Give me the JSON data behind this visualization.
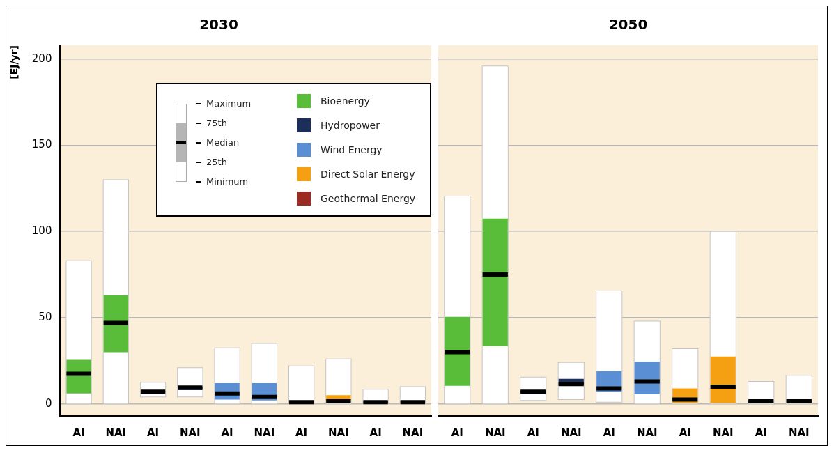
{
  "chart_data": [
    {
      "type": "box",
      "title": "2030",
      "ylabel": "[EJ/yr]",
      "categories": [
        "AI",
        "NAI",
        "AI",
        "NAI",
        "AI",
        "NAI",
        "AI",
        "NAI",
        "AI",
        "NAI"
      ],
      "ylim": [
        -7,
        208
      ],
      "yticks": [
        0,
        50,
        100,
        150,
        200
      ],
      "grid": "y",
      "legend": "top",
      "annotations": [
        "Maximum",
        "75th",
        "Median",
        "25th",
        "Minimum"
      ],
      "series": [
        {
          "name": "Bioenergy",
          "color": "#5abd3a",
          "boxes": [
            {
              "low": 0,
              "q1": 6,
              "median": 17.5,
              "q3": 25.5,
              "high": 83
            },
            {
              "low": 0,
              "q1": 30,
              "median": 47,
              "q3": 63,
              "high": 130
            },
            null,
            null,
            null,
            null,
            null,
            null,
            null,
            null
          ]
        },
        {
          "name": "Hydropower",
          "color": "#1c2f5a",
          "boxes": [
            null,
            null,
            {
              "low": 4,
              "q1": 6.5,
              "median": 7,
              "q3": 7.5,
              "high": 12.5
            },
            {
              "low": 4,
              "q1": 8,
              "median": 9.5,
              "q3": 10,
              "high": 21
            },
            null,
            null,
            null,
            null,
            null,
            null
          ]
        },
        {
          "name": "Wind Energy",
          "color": "#5b8fd4",
          "boxes": [
            null,
            null,
            null,
            null,
            {
              "low": 0,
              "q1": 2.5,
              "median": 6,
              "q3": 12,
              "high": 32.5
            },
            {
              "low": 0,
              "q1": 2,
              "median": 4,
              "q3": 12,
              "high": 35
            },
            null,
            null,
            null,
            null
          ]
        },
        {
          "name": "Direct Solar Energy",
          "color": "#f5a012",
          "boxes": [
            null,
            null,
            null,
            null,
            null,
            null,
            {
              "low": 0,
              "q1": 0.5,
              "median": 1,
              "q3": 1.5,
              "high": 22
            },
            {
              "low": 0,
              "q1": 0.5,
              "median": 1.5,
              "q3": 5,
              "high": 26
            },
            null,
            null
          ]
        },
        {
          "name": "Geothermal Energy",
          "color": "#9a2a22",
          "boxes": [
            null,
            null,
            null,
            null,
            null,
            null,
            null,
            null,
            {
              "low": 0,
              "q1": 0.5,
              "median": 1,
              "q3": 1.5,
              "high": 8.5
            },
            {
              "low": 0,
              "q1": 0.5,
              "median": 1,
              "q3": 1.5,
              "high": 10
            }
          ]
        }
      ]
    },
    {
      "type": "box",
      "title": "2050",
      "categories": [
        "AI",
        "NAI",
        "AI",
        "NAI",
        "AI",
        "NAI",
        "AI",
        "NAI",
        "AI",
        "NAI"
      ],
      "ylim": [
        -7,
        208
      ],
      "yticks": [
        0,
        50,
        100,
        150,
        200
      ],
      "grid": "y",
      "tick_labels": "x",
      "series": [
        {
          "color": "#5abd3a",
          "boxes": [
            {
              "low": 0,
              "q1": 10.5,
              "median": 30,
              "q3": 50.5,
              "high": 120.5
            },
            {
              "low": 0,
              "q1": 33.5,
              "median": 75,
              "q3": 107.5,
              "high": 196
            },
            null,
            null,
            null,
            null,
            null,
            null,
            null,
            null
          ]
        },
        {
          "color": "#1c2f5a",
          "boxes": [
            null,
            null,
            {
              "low": 2,
              "q1": 6.5,
              "median": 7,
              "q3": 7.5,
              "high": 15.5
            },
            {
              "low": 2.5,
              "q1": 11,
              "median": 11.5,
              "q3": 14.5,
              "high": 24
            },
            null,
            null,
            null,
            null,
            null,
            null
          ]
        },
        {
          "color": "#5b8fd4",
          "boxes": [
            null,
            null,
            null,
            null,
            {
              "low": 1,
              "q1": 7,
              "median": 9,
              "q3": 19,
              "high": 65.5
            },
            {
              "low": 0,
              "q1": 5.5,
              "median": 13,
              "q3": 24.5,
              "high": 48
            },
            null,
            null,
            null,
            null
          ]
        },
        {
          "color": "#f5a012",
          "boxes": [
            null,
            null,
            null,
            null,
            null,
            null,
            {
              "low": 0,
              "q1": 0.5,
              "median": 2.5,
              "q3": 9,
              "high": 32
            },
            {
              "low": 0,
              "q1": 0.5,
              "median": 10,
              "q3": 27.5,
              "high": 100
            },
            null,
            null
          ]
        },
        {
          "color": "#9a2a22",
          "boxes": [
            null,
            null,
            null,
            null,
            null,
            null,
            null,
            null,
            {
              "low": 0,
              "q1": 0.5,
              "median": 1.5,
              "q3": 2,
              "high": 13
            },
            {
              "low": 0,
              "q1": 0.5,
              "median": 1.5,
              "q3": 2.5,
              "high": 16.5
            }
          ]
        }
      ]
    }
  ]
}
